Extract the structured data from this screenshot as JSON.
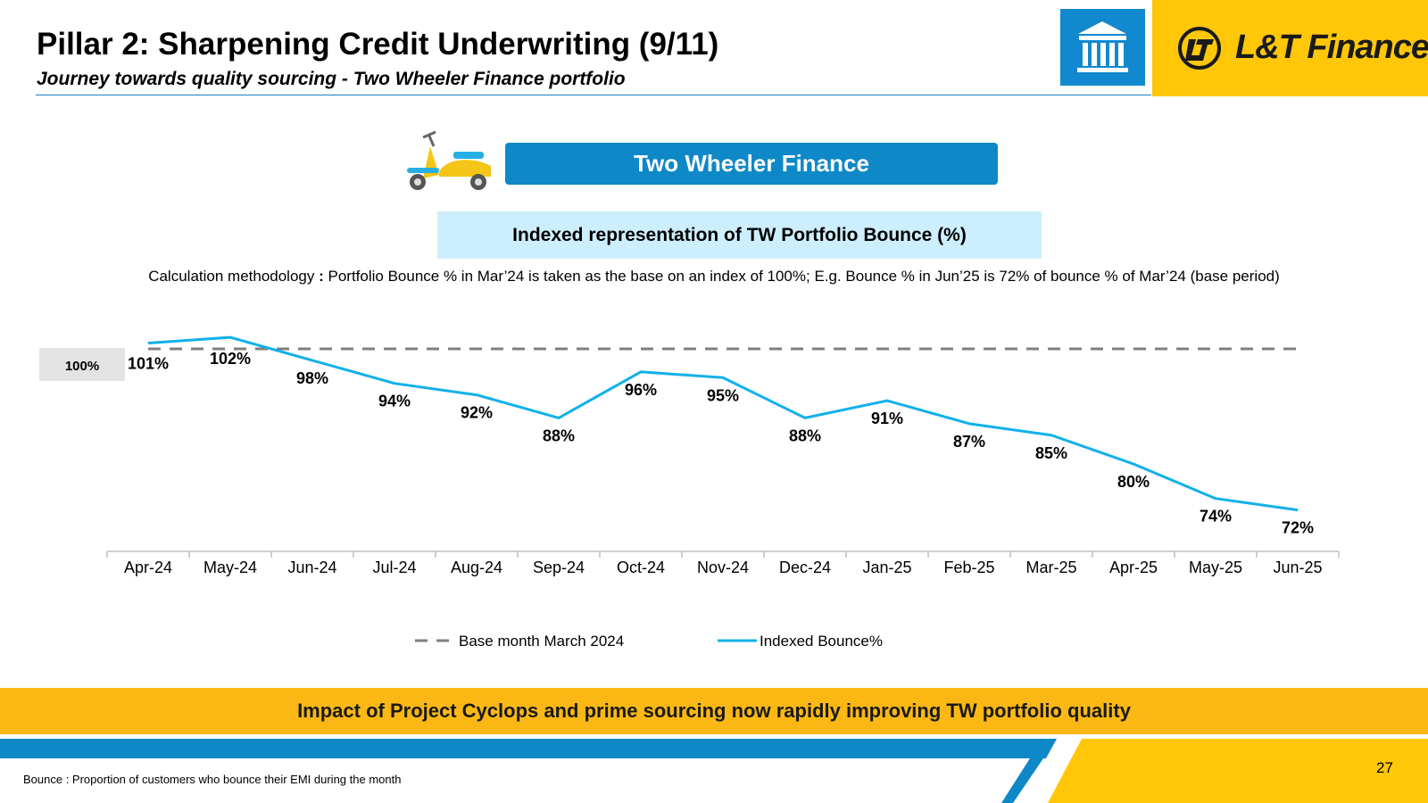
{
  "header": {
    "title": "Pillar 2: Sharpening Credit Underwriting (9/11)",
    "subtitle": "Journey towards quality sourcing - Two Wheeler Finance portfolio",
    "logo_text": "L&T Finance"
  },
  "section": {
    "banner_label": "Two Wheeler Finance",
    "chart_heading": "Indexed representation of TW Portfolio Bounce (%)",
    "methodology_prefix": "Calculation methodology",
    "methodology_sep": " : ",
    "methodology_text": "Portfolio Bounce % in Mar’24 is taken as the base on an index of 100%; E.g. Bounce % in Jun’25 is 72% of bounce % of Mar’24 (base period)"
  },
  "chart_data": {
    "type": "line",
    "categories": [
      "Apr-24",
      "May-24",
      "Jun-24",
      "Jul-24",
      "Aug-24",
      "Sep-24",
      "Oct-24",
      "Nov-24",
      "Dec-24",
      "Jan-25",
      "Feb-25",
      "Mar-25",
      "Apr-25",
      "May-25",
      "Jun-25"
    ],
    "series": [
      {
        "name": "Base month March 2024",
        "values": [
          100,
          100,
          100,
          100,
          100,
          100,
          100,
          100,
          100,
          100,
          100,
          100,
          100,
          100,
          100
        ],
        "style": "dashed",
        "color": "#7f7f7f"
      },
      {
        "name": "Indexed Bounce%",
        "values": [
          101,
          102,
          98,
          94,
          92,
          88,
          96,
          95,
          88,
          91,
          87,
          85,
          80,
          74,
          72
        ],
        "style": "solid",
        "color": "#11b0ea"
      }
    ],
    "data_labels": [
      "101%",
      "102%",
      "98%",
      "94%",
      "92%",
      "88%",
      "96%",
      "95%",
      "88%",
      "91%",
      "87%",
      "85%",
      "80%",
      "74%",
      "72%"
    ],
    "base_label": "100%",
    "ylim": [
      60,
      105
    ],
    "grid": false,
    "legend_position": "bottom"
  },
  "colors": {
    "accent_blue": "#0e88c7",
    "brand_yellow": "#ffc708",
    "line_blue": "#11b0ea",
    "base_grey": "#7f7f7f"
  },
  "callout": {
    "text": "Impact of Project Cyclops and prime sourcing now rapidly improving TW portfolio quality"
  },
  "footer": {
    "footnote": "Bounce : Proportion of customers who bounce their EMI during the month",
    "page_number": "27"
  },
  "icons": [
    "bank-building-icon",
    "lt-logo-icon",
    "scooter-icon"
  ]
}
